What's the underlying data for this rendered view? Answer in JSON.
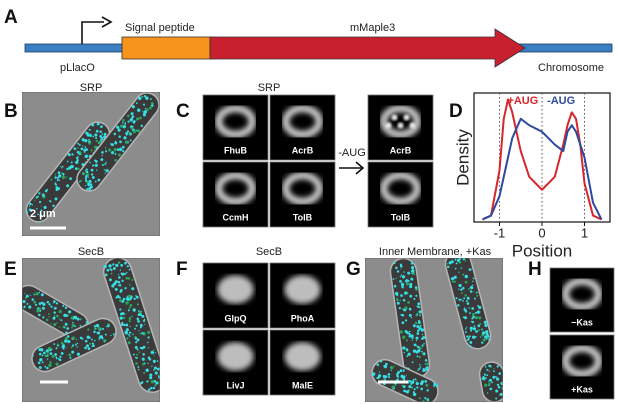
{
  "panel_a": {
    "letter": "A",
    "promoter": "pLlacO",
    "segments": [
      "Signal peptide",
      "mMaple3"
    ],
    "chromosome": "Chromosome"
  },
  "panel_b": {
    "letter": "B",
    "title": "SRP",
    "scale_bar": "2 μm"
  },
  "panel_c": {
    "letter": "C",
    "title": "SRP",
    "tiles": [
      "FhuB",
      "AcrB",
      "CcmH",
      "TolB"
    ],
    "arrow_label": "-AUG",
    "tiles_minus_aug": [
      "AcrB",
      "TolB"
    ]
  },
  "panel_d": {
    "letter": "D",
    "type": "line",
    "x_label": "Position",
    "y_label": "Density",
    "xlim": [
      -1.6,
      1.6
    ],
    "ylim": [
      0,
      1
    ],
    "xticks": [
      -1,
      0,
      1
    ],
    "x": [
      -1.4,
      -1.2,
      -1.0,
      -0.9,
      -0.8,
      -0.7,
      -0.5,
      -0.3,
      0,
      0.3,
      0.5,
      0.6,
      0.7,
      0.8,
      0.9,
      1.0,
      1.2,
      1.4
    ],
    "series": [
      {
        "name": "+AUG",
        "color": "#d7262b",
        "values": [
          0.02,
          0.05,
          0.4,
          0.8,
          0.95,
          0.85,
          0.55,
          0.35,
          0.25,
          0.35,
          0.6,
          0.75,
          0.85,
          0.8,
          0.6,
          0.3,
          0.05,
          0.02
        ]
      },
      {
        "name": "-AUG",
        "color": "#2d4a9e",
        "values": [
          0.02,
          0.05,
          0.2,
          0.35,
          0.5,
          0.65,
          0.8,
          0.75,
          0.7,
          0.6,
          0.55,
          0.7,
          0.75,
          0.7,
          0.6,
          0.5,
          0.15,
          0.02
        ]
      }
    ]
  },
  "panel_e": {
    "letter": "E",
    "title": "SecB"
  },
  "panel_f": {
    "letter": "F",
    "title": "SecB",
    "tiles": [
      "GlpQ",
      "PhoA",
      "LivJ",
      "MalE"
    ]
  },
  "panel_g": {
    "letter": "G",
    "title": "Inner Membrane, +Kas"
  },
  "panel_h": {
    "letter": "H",
    "tiles": [
      "−Kas",
      "+Kas"
    ]
  }
}
